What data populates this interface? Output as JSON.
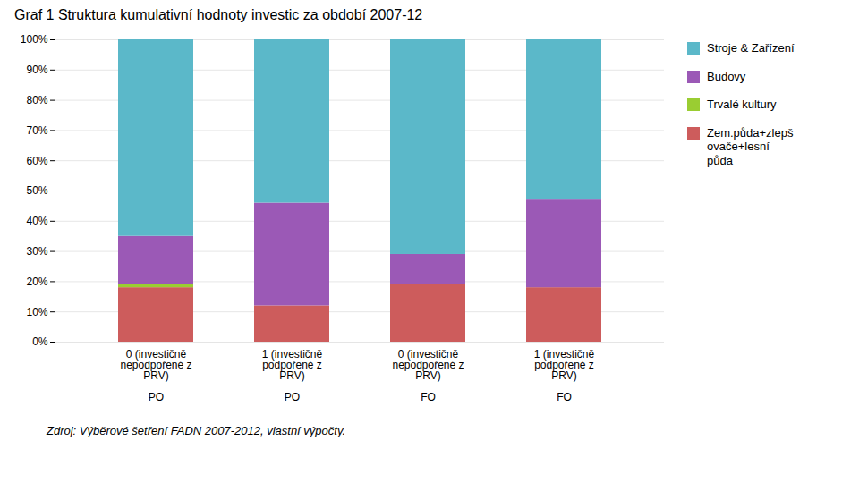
{
  "chart_data": {
    "type": "bar",
    "stacked": true,
    "title": "Graf 1 Struktura kumulativní hodnoty investic za období 2007-12",
    "caption": "Zdroj: Výběrové šetření FADN 2007-2012, vlastní výpočty.",
    "categories": [
      "0 (investičně\nnepodpořené z\nPRV)\n\nPO",
      "1 (investičně\npodpořené z\nPRV)\n\nPO",
      "0 (investičně\nnepodpořené z\nPRV)\n\nFO",
      "1 (investičně\npodpořené z\nPRV)\n\nFO"
    ],
    "series": [
      {
        "name": "Zem.půda+zlepš\novače+lesní\npůda",
        "color": "#CD5C5C",
        "values": [
          18,
          12,
          19,
          18
        ]
      },
      {
        "name": "Trvalé kultury",
        "color": "#9ACD32",
        "values": [
          1,
          0,
          0,
          0
        ]
      },
      {
        "name": "Budovy",
        "color": "#9B59B6",
        "values": [
          16,
          34,
          10,
          29
        ]
      },
      {
        "name": "Stroje & Zařízení",
        "color": "#5BB8C9",
        "values": [
          65,
          54,
          71,
          53
        ]
      }
    ],
    "ylim": [
      0,
      100
    ],
    "yticks": [
      {
        "value": 0,
        "label": "0%"
      },
      {
        "value": 10,
        "label": "10%"
      },
      {
        "value": 20,
        "label": "20%"
      },
      {
        "value": 30,
        "label": "30%"
      },
      {
        "value": 40,
        "label": "40%"
      },
      {
        "value": 50,
        "label": "50%"
      },
      {
        "value": 60,
        "label": "60%"
      },
      {
        "value": 70,
        "label": "70%"
      },
      {
        "value": 80,
        "label": "80%"
      },
      {
        "value": 90,
        "label": "90%"
      },
      {
        "value": 100,
        "label": "100%"
      }
    ],
    "grid": true,
    "legend": "right"
  }
}
